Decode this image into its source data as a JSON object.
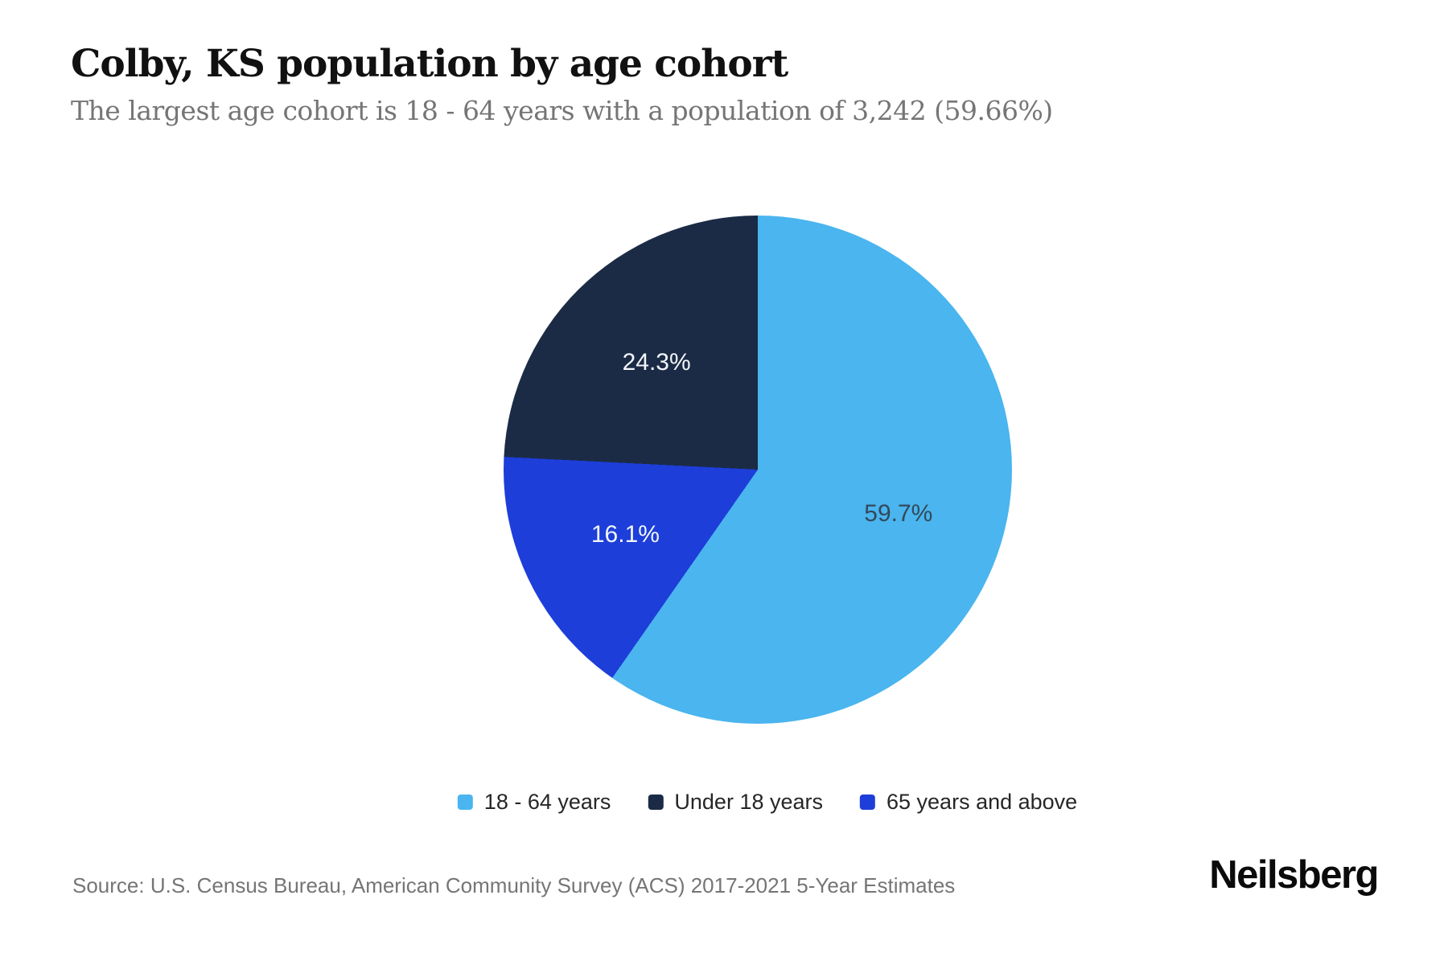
{
  "header": {
    "title": "Colby, KS population by age cohort",
    "subtitle": "The largest age cohort is 18 - 64 years with a population of 3,242 (59.66%)"
  },
  "chart_data": {
    "type": "pie",
    "title": "Colby, KS population by age cohort",
    "unit": "percent",
    "direction": "clockwise",
    "start_angle_deg": 0,
    "slices": [
      {
        "label": "18 - 64 years",
        "value": 59.7,
        "display": "59.7%",
        "color": "#4ab5ee",
        "label_color": "#33495c"
      },
      {
        "label": "65 years and above",
        "value": 16.1,
        "display": "16.1%",
        "color": "#1d3ed9",
        "label_color": "#f2f6fa"
      },
      {
        "label": "Under 18 years",
        "value": 24.3,
        "display": "24.3%",
        "color": "#1b2b45",
        "label_color": "#f2f6fa"
      }
    ],
    "legend_position": "bottom",
    "largest_cohort": {
      "label": "18 - 64 years",
      "population": "3,242",
      "share": "59.66%"
    }
  },
  "legend": {
    "items": [
      {
        "label": "18 - 64 years",
        "color": "#4ab5ee"
      },
      {
        "label": "Under 18 years",
        "color": "#1b2b45"
      },
      {
        "label": "65 years and above",
        "color": "#1d3ed9"
      }
    ]
  },
  "footer": {
    "source": "Source: U.S. Census Bureau, American Community Survey (ACS) 2017-2021 5-Year Estimates",
    "brand": "Neilsberg"
  },
  "colors": {
    "background": "#ffffff",
    "title_text": "#111111",
    "muted_text": "#757575",
    "legend_text": "#262626"
  }
}
